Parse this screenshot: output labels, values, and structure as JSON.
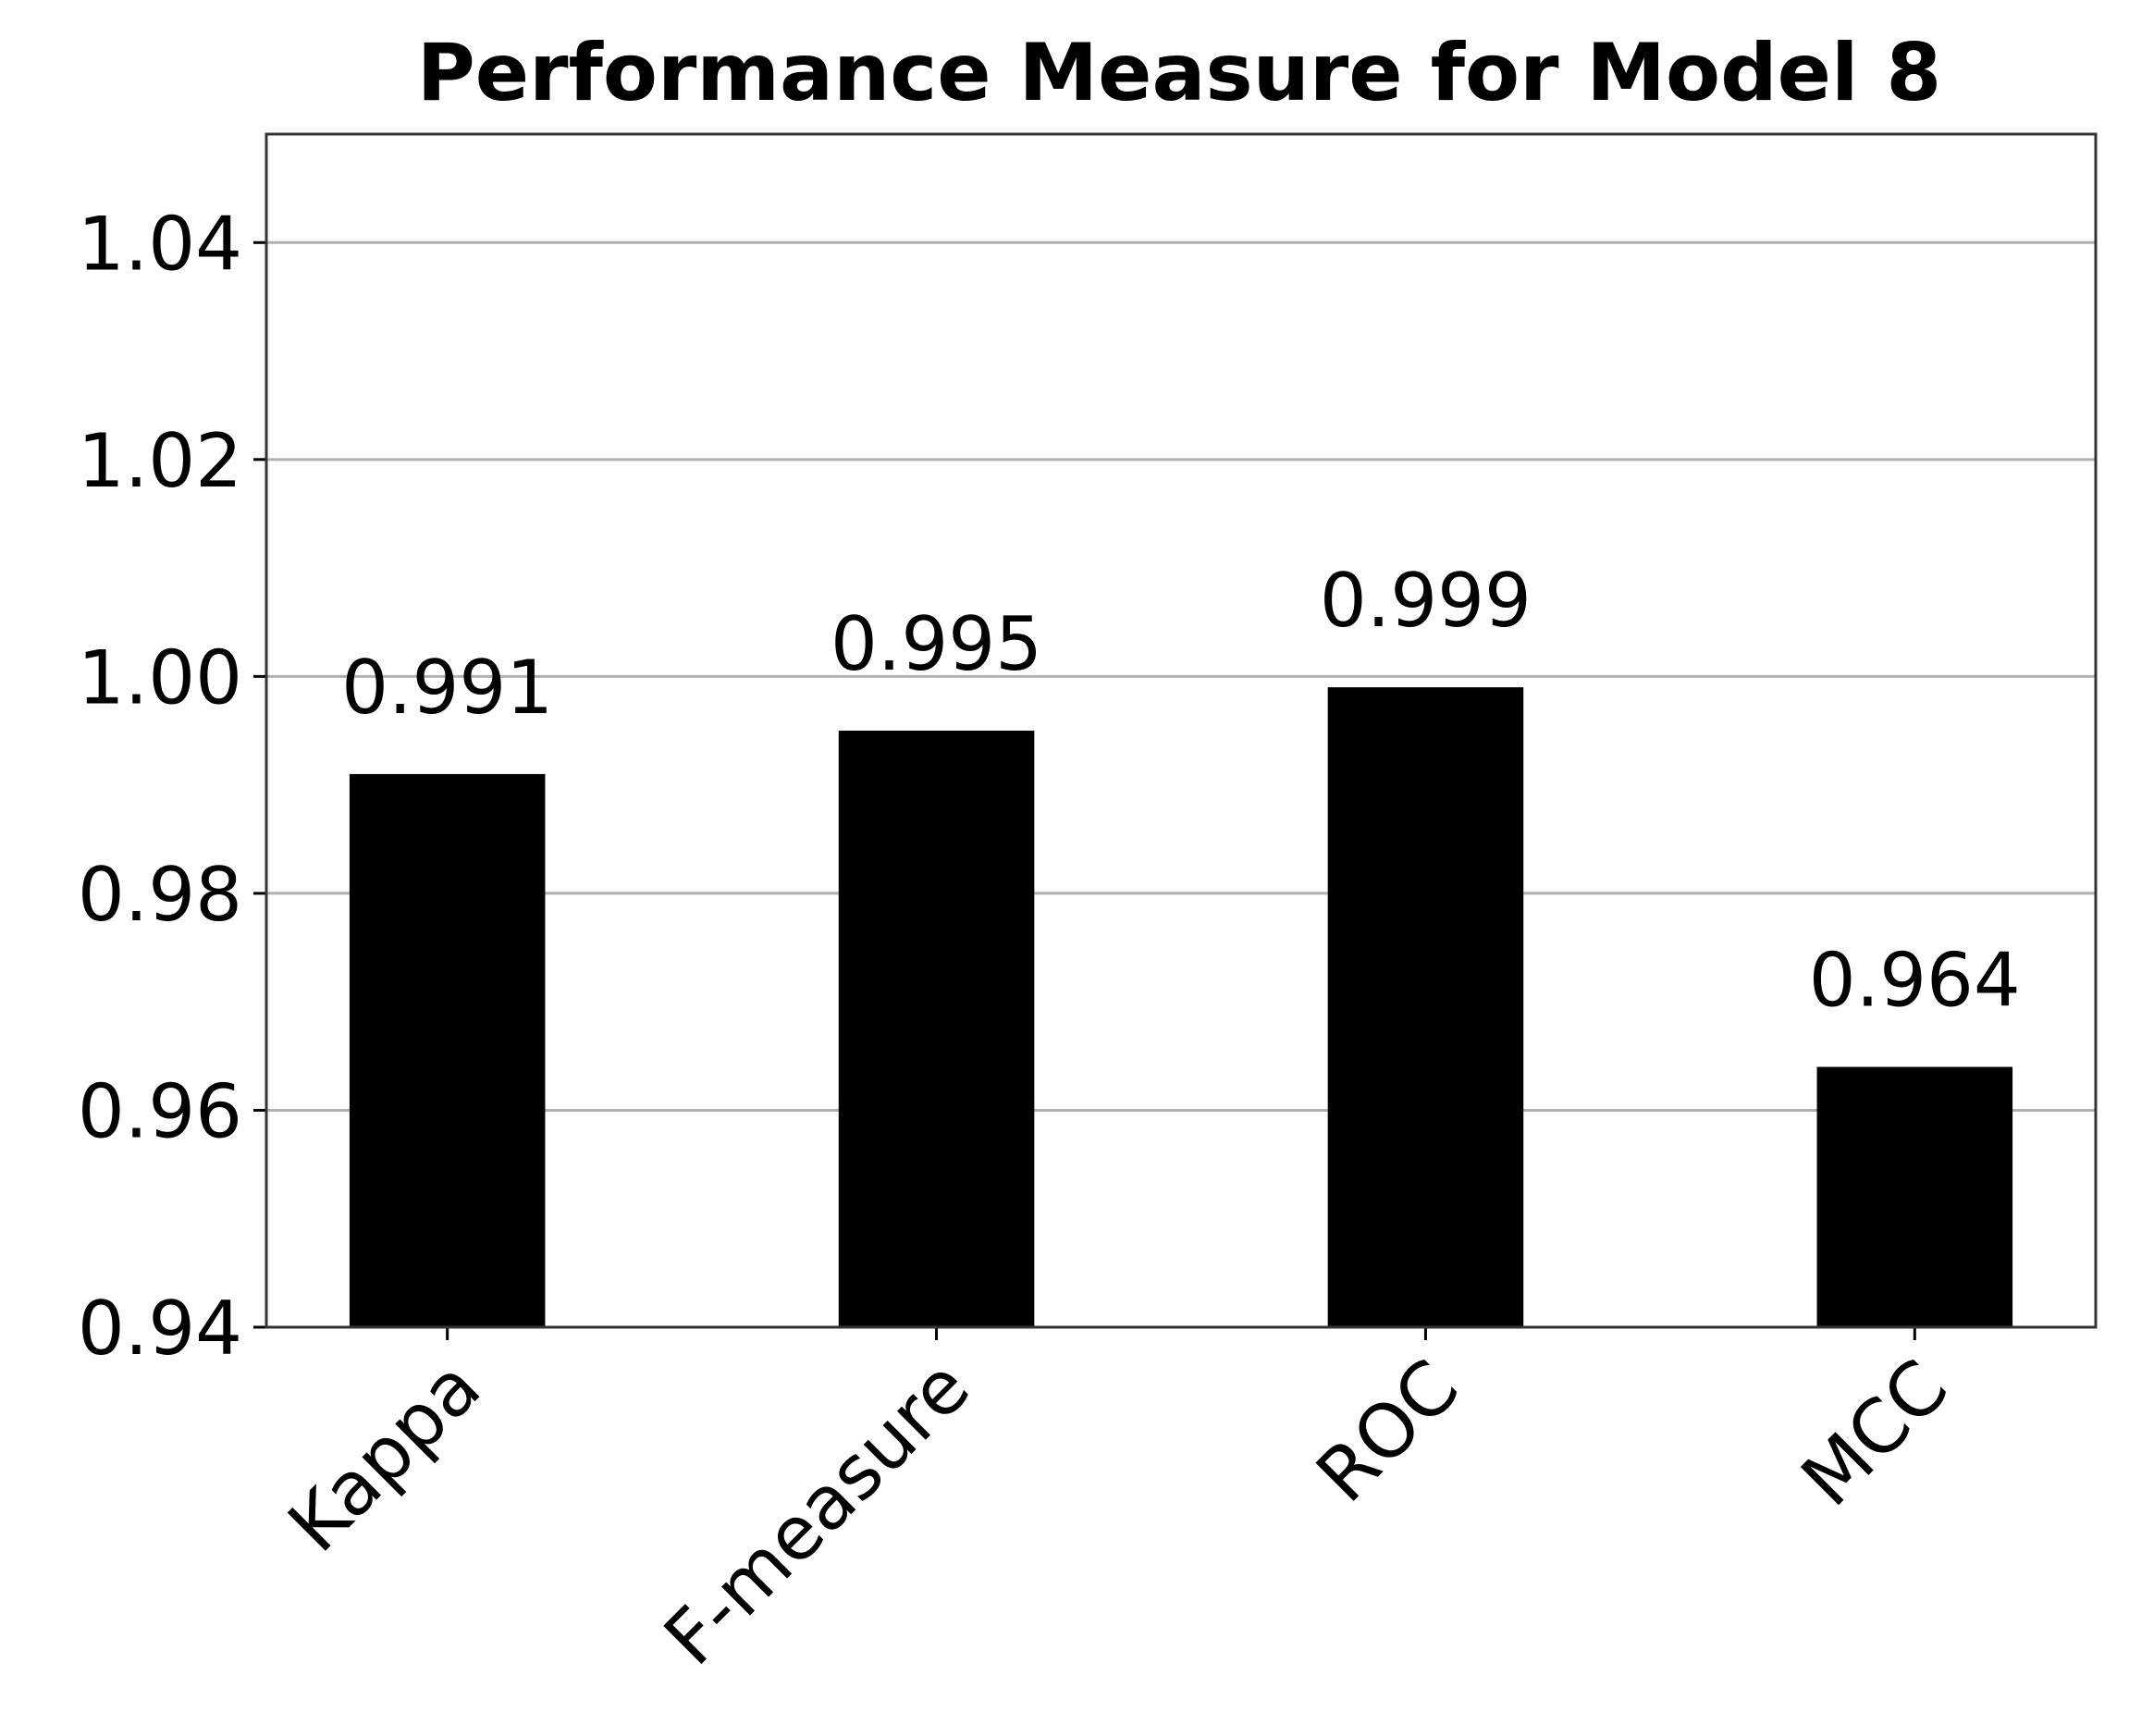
{
  "chart_data": {
    "type": "bar",
    "title": "Performance Measure for Model 8",
    "categories": [
      "Kappa",
      "F-measure",
      "ROC",
      "MCC"
    ],
    "values": [
      0.991,
      0.995,
      0.999,
      0.964
    ],
    "color": "#000000",
    "ylim": [
      0.94,
      1.05
    ],
    "yticks": [
      0.94,
      0.96,
      0.98,
      {
        "value": 1,
        "label": "1.00"
      },
      1.02,
      1.04
    ],
    "grid": true
  }
}
